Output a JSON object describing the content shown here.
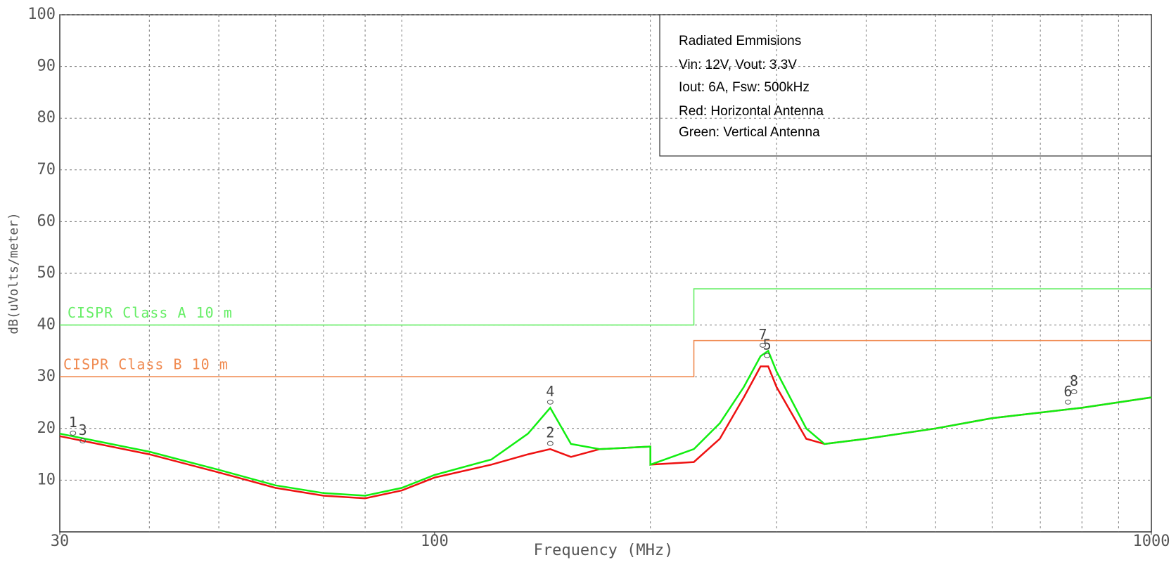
{
  "chart_data": {
    "type": "line",
    "xlabel": "Frequency (MHz)",
    "ylabel": "dB(uVolts/meter)",
    "xscale": "log",
    "xlim": [
      30,
      1000
    ],
    "ylim": [
      0,
      100
    ],
    "xticks": [
      30,
      100,
      1000
    ],
    "xgrid": [
      40,
      50,
      60,
      70,
      80,
      90,
      200,
      300,
      400,
      500,
      600,
      700,
      800,
      900
    ],
    "yticks": [
      10,
      20,
      30,
      40,
      50,
      60,
      70,
      80,
      90,
      100
    ],
    "grid": true,
    "info_box": [
      "Radiated Emmisions",
      "Vin: 12V, Vout: 3.3V",
      "Iout: 6A, Fsw: 500kHz",
      "Red: Horizontal Antenna",
      "Green: Vertical Antenna"
    ],
    "series": [
      {
        "name": "CISPR Class A 10 m",
        "color": "#66ee66",
        "x": [
          30,
          230,
          230,
          1000
        ],
        "values": [
          40,
          40,
          47,
          47
        ]
      },
      {
        "name": "CISPR Class B 10 m",
        "color": "#f08a50",
        "x": [
          30,
          230,
          230,
          1000
        ],
        "values": [
          30,
          30,
          37,
          37
        ]
      },
      {
        "color": "#ee1111",
        "x": [
          30,
          40,
          50,
          60,
          70,
          80,
          90,
          100,
          120,
          135,
          145,
          155,
          170,
          200,
          200,
          230,
          250,
          270,
          285,
          292,
          300,
          330,
          350,
          400,
          500,
          600,
          800,
          1000
        ],
        "values": [
          18.5,
          15,
          11.5,
          8.5,
          7,
          6.5,
          8,
          10.5,
          13,
          15,
          16,
          14.5,
          16,
          16.5,
          13,
          13.5,
          18,
          26,
          32,
          32,
          28,
          18,
          17,
          18,
          20,
          22,
          24,
          26
        ]
      },
      {
        "color": "#11ee11",
        "x": [
          30,
          40,
          50,
          60,
          70,
          80,
          90,
          100,
          120,
          135,
          145,
          155,
          170,
          200,
          200,
          230,
          250,
          270,
          285,
          292,
          300,
          330,
          350,
          400,
          500,
          600,
          800,
          1000
        ],
        "values": [
          19,
          15.5,
          12,
          9,
          7.5,
          7,
          8.5,
          11,
          14,
          19,
          24,
          17,
          16,
          16.5,
          13,
          16,
          21,
          28,
          34,
          35,
          31,
          20,
          17,
          18,
          20,
          22,
          24,
          26
        ]
      }
    ],
    "markers": [
      {
        "label": "1",
        "x": 31.3,
        "y": 21
      },
      {
        "label": "3",
        "x": 32.3,
        "y": 19.5
      },
      {
        "label": "4",
        "x": 145,
        "y": 27
      },
      {
        "label": "2",
        "x": 145,
        "y": 19
      },
      {
        "label": "7",
        "x": 287,
        "y": 38
      },
      {
        "label": "5",
        "x": 291,
        "y": 36
      },
      {
        "label": "8",
        "x": 780,
        "y": 29
      },
      {
        "label": "6",
        "x": 765,
        "y": 27
      }
    ]
  }
}
